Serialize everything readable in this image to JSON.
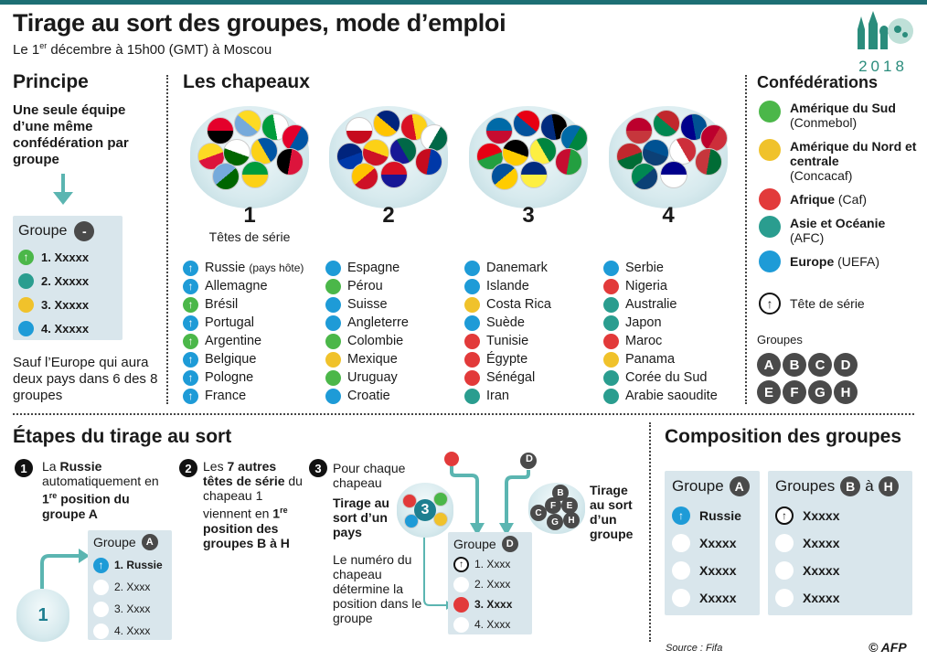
{
  "header": {
    "title": "Tirage au sort des groupes, mode d’emploi",
    "subtitle_pre": "Le 1",
    "subtitle_sup": "er",
    "subtitle_post": " décembre à 15h00 (GMT) à Moscou",
    "logo_year": "2018"
  },
  "principe": {
    "title": "Principe",
    "text": "Une seule équipe d’une même confédération par groupe",
    "group_label": "Groupe",
    "group_minus": "-",
    "rows": [
      "1. Xxxxx",
      "2. Xxxxx",
      "3. Xxxxx",
      "4. Xxxxx"
    ],
    "footer": "Sauf l’Europe qui aura deux pays dans 6 des 8 groupes"
  },
  "chapeaux": {
    "title": "Les chapeaux",
    "pots": [
      {
        "number": "1",
        "caption": "Têtes de série",
        "teams": [
          {
            "name": "Russie",
            "note": "(pays hôte)",
            "conf": "eu",
            "seed": true
          },
          {
            "name": "Allemagne",
            "conf": "eu",
            "seed": true
          },
          {
            "name": "Brésil",
            "conf": "sa",
            "seed": true
          },
          {
            "name": "Portugal",
            "conf": "eu",
            "seed": true
          },
          {
            "name": "Argentine",
            "conf": "sa",
            "seed": true
          },
          {
            "name": "Belgique",
            "conf": "eu",
            "seed": true
          },
          {
            "name": "Pologne",
            "conf": "eu",
            "seed": true
          },
          {
            "name": "France",
            "conf": "eu",
            "seed": true
          }
        ]
      },
      {
        "number": "2",
        "caption": "",
        "teams": [
          {
            "name": "Espagne",
            "conf": "eu"
          },
          {
            "name": "Pérou",
            "conf": "sa"
          },
          {
            "name": "Suisse",
            "conf": "eu"
          },
          {
            "name": "Angleterre",
            "conf": "eu"
          },
          {
            "name": "Colombie",
            "conf": "sa"
          },
          {
            "name": "Mexique",
            "conf": "na"
          },
          {
            "name": "Uruguay",
            "conf": "sa"
          },
          {
            "name": "Croatie",
            "conf": "eu"
          }
        ]
      },
      {
        "number": "3",
        "caption": "",
        "teams": [
          {
            "name": "Danemark",
            "conf": "eu"
          },
          {
            "name": "Islande",
            "conf": "eu"
          },
          {
            "name": "Costa Rica",
            "conf": "na"
          },
          {
            "name": "Suède",
            "conf": "eu"
          },
          {
            "name": "Tunisie",
            "conf": "af"
          },
          {
            "name": "Égypte",
            "conf": "af"
          },
          {
            "name": "Sénégal",
            "conf": "af"
          },
          {
            "name": "Iran",
            "conf": "as"
          }
        ]
      },
      {
        "number": "4",
        "caption": "",
        "teams": [
          {
            "name": "Serbie",
            "conf": "eu"
          },
          {
            "name": "Nigeria",
            "conf": "af"
          },
          {
            "name": "Australie",
            "conf": "as"
          },
          {
            "name": "Japon",
            "conf": "as"
          },
          {
            "name": "Maroc",
            "conf": "af"
          },
          {
            "name": "Panama",
            "conf": "na"
          },
          {
            "name": "Corée du Sud",
            "conf": "as"
          },
          {
            "name": "Arabie saoudite",
            "conf": "as"
          }
        ]
      }
    ]
  },
  "confederations": {
    "title": "Confédérations",
    "items": [
      {
        "name": "Amérique du Sud",
        "abbr": "(Conmebol)",
        "color": "#4bb749"
      },
      {
        "name": "Amérique du Nord et centrale",
        "abbr": "(Concacaf)",
        "color": "#f0c22b"
      },
      {
        "name": "Afrique",
        "abbr": "(Caf)",
        "color": "#e23a3a"
      },
      {
        "name": "Asie et Océanie",
        "abbr": "(AFC)",
        "color": "#2a9d8f"
      },
      {
        "name": "Europe",
        "abbr": "(UEFA)",
        "color": "#1e9bd7"
      }
    ],
    "seed_label": "Tête de série",
    "groups_label": "Groupes",
    "groups": [
      "A",
      "B",
      "C",
      "D",
      "E",
      "F",
      "G",
      "H"
    ]
  },
  "etapes": {
    "title": "Étapes du tirage au sort",
    "step1": {
      "num": "1",
      "t1": "La ",
      "b1": "Russie",
      "t2": " automatiquement en ",
      "b2": "1",
      "sup": "re",
      "b3": " position du groupe A"
    },
    "step1_box": {
      "label": "Groupe",
      "letter": "A",
      "rows": [
        "1. Russie",
        "2. Xxxx",
        "3. Xxxx",
        "4. Xxxx"
      ],
      "bowl_number": "1"
    },
    "step2": {
      "num": "2",
      "t1": "Les ",
      "b1": "7 autres têtes de série",
      "t2": " du chapeau 1 viennent en ",
      "b2": "1",
      "sup": "re",
      "b3": " position des groupes B à H"
    },
    "step3": {
      "num": "3",
      "intro": "Pour chaque chapeau",
      "draw_country": "Tirage au sort d’un pays",
      "note": "Le numéro du chapeau détermine la position dans le groupe",
      "draw_group": "Tirage au sort d’un groupe",
      "ball_number": "3",
      "drawn_letter": "D",
      "bowl_letters": [
        "C",
        "F",
        "E",
        "B",
        "H",
        "G"
      ]
    },
    "step3_box": {
      "label": "Groupe",
      "letter": "D",
      "rows": [
        "1. Xxxx",
        "2. Xxxx",
        "3. Xxxx",
        "4. Xxxx"
      ]
    }
  },
  "composition": {
    "title": "Composition des groupes",
    "box_a": {
      "label": "Groupe",
      "letter": "A",
      "rows": [
        "Russie",
        "Xxxxx",
        "Xxxxx",
        "Xxxxx"
      ]
    },
    "box_bh": {
      "label": "Groupes",
      "from": "B",
      "to_word": "à",
      "to": "H",
      "rows": [
        "Xxxxx",
        "Xxxxx",
        "Xxxxx",
        "Xxxxx"
      ]
    }
  },
  "footer": {
    "source": "Source : Fifa",
    "credit": "© AFP"
  }
}
